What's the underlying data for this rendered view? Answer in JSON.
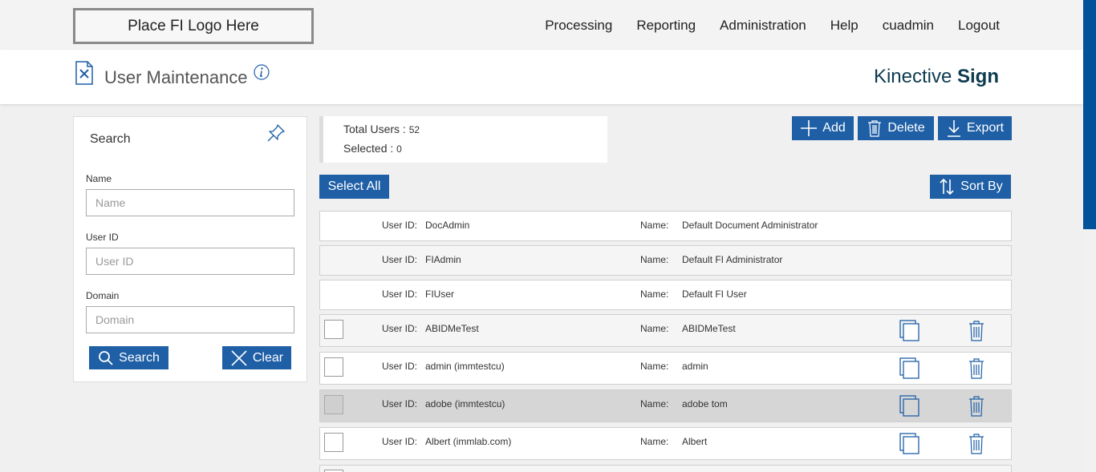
{
  "header": {
    "logo_text": "Place FI Logo Here",
    "nav": [
      "Processing",
      "Reporting",
      "Administration",
      "Help",
      "cuadmin",
      "Logout"
    ]
  },
  "titlebar": {
    "title": "User Maintenance",
    "brand_light": "Kinective ",
    "brand_bold": "Sign"
  },
  "search": {
    "title": "Search",
    "name_label": "Name",
    "name_placeholder": "Name",
    "userid_label": "User ID",
    "userid_placeholder": "User ID",
    "domain_label": "Domain",
    "domain_placeholder": "Domain",
    "search_button": "Search",
    "clear_button": "Clear"
  },
  "summary": {
    "total_label": "Total Users : ",
    "total_value": "52",
    "selected_label": "Selected : ",
    "selected_value": "0"
  },
  "toolbar": {
    "add": "Add",
    "delete": "Delete",
    "export": "Export",
    "select_all": "Select All",
    "sort_by": "Sort By"
  },
  "list": {
    "userid_label": "User ID:",
    "name_label": "Name:",
    "rows": [
      {
        "user_id": "DocAdmin",
        "name": "Default Document Administrator"
      },
      {
        "user_id": "FIAdmin",
        "name": "Default FI Administrator"
      },
      {
        "user_id": "FIUser",
        "name": "Default FI User"
      },
      {
        "user_id": "ABIDMeTest",
        "name": "ABIDMeTest"
      },
      {
        "user_id": "admin (immtestcu)",
        "name": "admin"
      },
      {
        "user_id": "adobe (immtestcu)",
        "name": "adobe tom"
      },
      {
        "user_id": "Albert (immlab.com)",
        "name": "Albert"
      }
    ]
  },
  "colors": {
    "accent": "#1f5fa6",
    "brand": "#0d3b4f",
    "scroll_thumb": "#00539b"
  },
  "icons": [
    "doc-edit-icon",
    "info-icon",
    "pin-icon",
    "search-icon",
    "close-icon",
    "plus-icon",
    "trash-icon",
    "download-icon",
    "sort-icon",
    "copy-icon"
  ]
}
